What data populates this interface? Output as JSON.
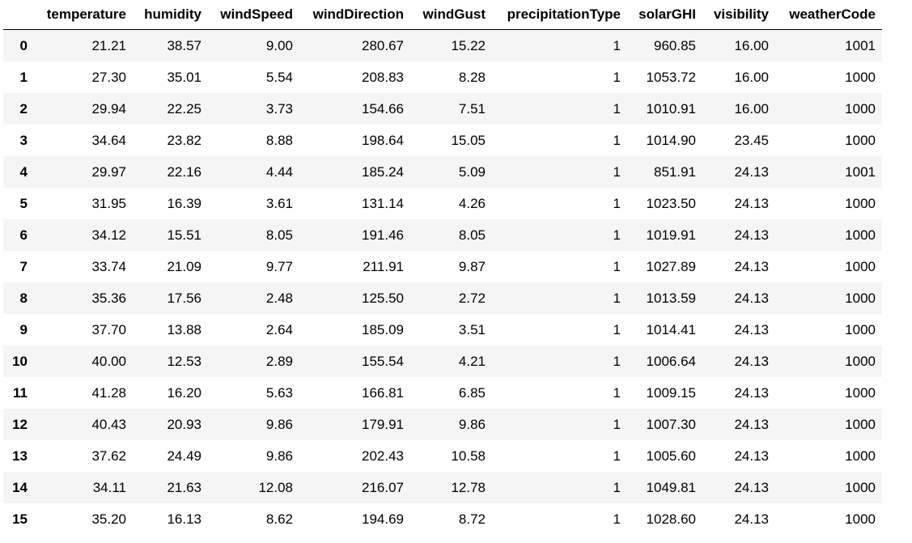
{
  "table": {
    "columns": [
      "",
      "temperature",
      "humidity",
      "windSpeed",
      "windDirection",
      "windGust",
      "precipitationType",
      "solarGHI",
      "visibility",
      "weatherCode"
    ],
    "rows": [
      [
        "0",
        "21.21",
        "38.57",
        "9.00",
        "280.67",
        "15.22",
        "1",
        "960.85",
        "16.00",
        "1001"
      ],
      [
        "1",
        "27.30",
        "35.01",
        "5.54",
        "208.83",
        "8.28",
        "1",
        "1053.72",
        "16.00",
        "1000"
      ],
      [
        "2",
        "29.94",
        "22.25",
        "3.73",
        "154.66",
        "7.51",
        "1",
        "1010.91",
        "16.00",
        "1000"
      ],
      [
        "3",
        "34.64",
        "23.82",
        "8.88",
        "198.64",
        "15.05",
        "1",
        "1014.90",
        "23.45",
        "1000"
      ],
      [
        "4",
        "29.97",
        "22.16",
        "4.44",
        "185.24",
        "5.09",
        "1",
        "851.91",
        "24.13",
        "1001"
      ],
      [
        "5",
        "31.95",
        "16.39",
        "3.61",
        "131.14",
        "4.26",
        "1",
        "1023.50",
        "24.13",
        "1000"
      ],
      [
        "6",
        "34.12",
        "15.51",
        "8.05",
        "191.46",
        "8.05",
        "1",
        "1019.91",
        "24.13",
        "1000"
      ],
      [
        "7",
        "33.74",
        "21.09",
        "9.77",
        "211.91",
        "9.87",
        "1",
        "1027.89",
        "24.13",
        "1000"
      ],
      [
        "8",
        "35.36",
        "17.56",
        "2.48",
        "125.50",
        "2.72",
        "1",
        "1013.59",
        "24.13",
        "1000"
      ],
      [
        "9",
        "37.70",
        "13.88",
        "2.64",
        "185.09",
        "3.51",
        "1",
        "1014.41",
        "24.13",
        "1000"
      ],
      [
        "10",
        "40.00",
        "12.53",
        "2.89",
        "155.54",
        "4.21",
        "1",
        "1006.64",
        "24.13",
        "1000"
      ],
      [
        "11",
        "41.28",
        "16.20",
        "5.63",
        "166.81",
        "6.85",
        "1",
        "1009.15",
        "24.13",
        "1000"
      ],
      [
        "12",
        "40.43",
        "20.93",
        "9.86",
        "179.91",
        "9.86",
        "1",
        "1007.30",
        "24.13",
        "1000"
      ],
      [
        "13",
        "37.62",
        "24.49",
        "9.86",
        "202.43",
        "10.58",
        "1",
        "1005.60",
        "24.13",
        "1000"
      ],
      [
        "14",
        "34.11",
        "21.63",
        "12.08",
        "216.07",
        "12.78",
        "1",
        "1049.81",
        "24.13",
        "1000"
      ],
      [
        "15",
        "35.20",
        "16.13",
        "8.62",
        "194.69",
        "8.72",
        "1",
        "1028.60",
        "24.13",
        "1000"
      ]
    ]
  },
  "colors": {
    "stripe": "#f5f5f5",
    "background": "#ffffff",
    "header_rule": "#000000"
  }
}
